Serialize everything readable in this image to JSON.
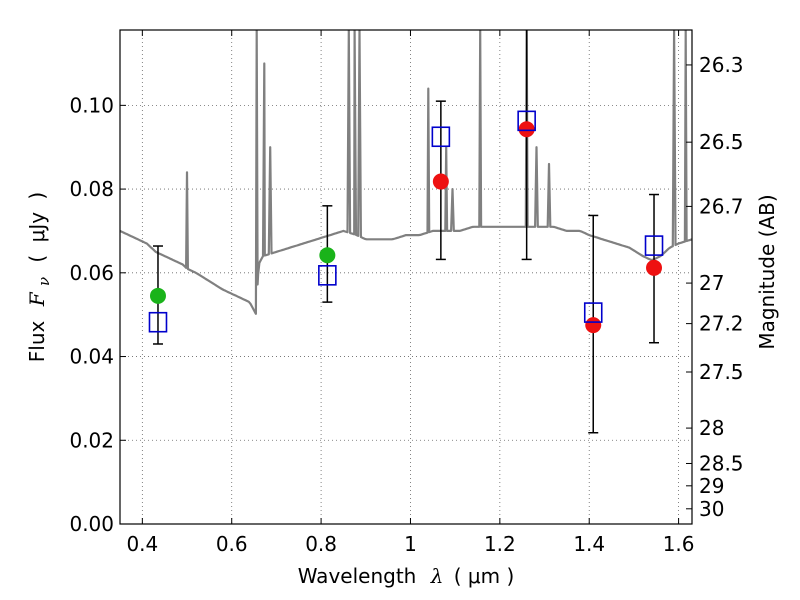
{
  "chart_data": {
    "type": "scatter",
    "xlabel": {
      "text": "Wavelength",
      "symbol": "λ",
      "open": "(",
      "unit": "μm",
      "close": ")"
    },
    "ylabel": {
      "text": "Flux",
      "symbol": "F",
      "subscript": "ν",
      "open": "(",
      "unit": "μJy",
      "close": ")"
    },
    "y2label": "Magnitude (AB)",
    "xlim": [
      0.35,
      1.63
    ],
    "ylim": [
      0.0,
      0.118
    ],
    "grid": true,
    "x_ticks": [
      0.4,
      0.6,
      0.8,
      1.0,
      1.2,
      1.4,
      1.6
    ],
    "x_tick_labels": [
      "0.4",
      "0.6",
      "0.8",
      "1",
      "1.2",
      "1.4",
      "1.6"
    ],
    "y_ticks": [
      0.0,
      0.02,
      0.04,
      0.06,
      0.08,
      0.1
    ],
    "y_tick_labels": [
      "0.00",
      "0.02",
      "0.04",
      "0.06",
      "0.08",
      "0.10"
    ],
    "mag_ticks": [
      26.3,
      26.5,
      26.7,
      27,
      27.2,
      27.5,
      28,
      28.5,
      29,
      30
    ],
    "mag_tick_labels": [
      "26.3",
      "26.5",
      "26.7",
      "27",
      "27.2",
      "27.5",
      "28",
      "28.5",
      "29",
      "30"
    ],
    "colors": {
      "model": "#808080",
      "green": "#1ab31a",
      "red": "#ee1111",
      "square": "#0000cc",
      "errorbar": "#000000",
      "grid": "#666666"
    },
    "series": [
      {
        "type": "line",
        "points": [
          [
            0.35,
            0.07
          ],
          [
            0.37,
            0.069
          ],
          [
            0.39,
            0.068
          ],
          [
            0.41,
            0.067
          ],
          [
            0.43,
            0.065
          ],
          [
            0.45,
            0.064
          ],
          [
            0.47,
            0.063
          ],
          [
            0.49,
            0.062
          ],
          [
            0.5,
            0.061
          ],
          [
            0.52,
            0.06
          ],
          [
            0.55,
            0.058
          ],
          [
            0.58,
            0.056
          ],
          [
            0.6,
            0.055
          ],
          [
            0.62,
            0.054
          ],
          [
            0.64,
            0.053
          ],
          [
            0.65,
            0.051
          ],
          [
            0.655,
            0.05
          ],
          [
            0.66,
            0.062
          ],
          [
            0.67,
            0.064
          ],
          [
            0.7,
            0.065
          ],
          [
            0.73,
            0.066
          ],
          [
            0.76,
            0.067
          ],
          [
            0.79,
            0.068
          ],
          [
            0.82,
            0.069
          ],
          [
            0.85,
            0.07
          ],
          [
            0.88,
            0.069
          ],
          [
            0.9,
            0.068
          ],
          [
            0.93,
            0.068
          ],
          [
            0.96,
            0.068
          ],
          [
            0.99,
            0.069
          ],
          [
            1.02,
            0.069
          ],
          [
            1.05,
            0.07
          ],
          [
            1.08,
            0.07
          ],
          [
            1.11,
            0.07
          ],
          [
            1.14,
            0.071
          ],
          [
            1.17,
            0.071
          ],
          [
            1.2,
            0.071
          ],
          [
            1.23,
            0.071
          ],
          [
            1.26,
            0.071
          ],
          [
            1.29,
            0.071
          ],
          [
            1.32,
            0.071
          ],
          [
            1.35,
            0.07
          ],
          [
            1.38,
            0.07
          ],
          [
            1.4,
            0.069
          ],
          [
            1.43,
            0.068
          ],
          [
            1.46,
            0.067
          ],
          [
            1.49,
            0.066
          ],
          [
            1.52,
            0.064
          ],
          [
            1.54,
            0.063
          ],
          [
            1.56,
            0.064
          ],
          [
            1.58,
            0.066
          ],
          [
            1.6,
            0.067
          ],
          [
            1.63,
            0.068
          ]
        ],
        "emission_lines": [
          {
            "x": 0.5,
            "top": 0.084
          },
          {
            "x": 0.656,
            "top": 0.118
          },
          {
            "x": 0.673,
            "top": 0.11
          },
          {
            "x": 0.686,
            "top": 0.09
          },
          {
            "x": 0.862,
            "top": 0.118
          },
          {
            "x": 0.875,
            "top": 0.118
          },
          {
            "x": 0.886,
            "top": 0.118
          },
          {
            "x": 1.04,
            "top": 0.104
          },
          {
            "x": 1.08,
            "top": 0.09
          },
          {
            "x": 1.094,
            "top": 0.08
          },
          {
            "x": 1.156,
            "top": 0.118
          },
          {
            "x": 1.26,
            "top": 0.118
          },
          {
            "x": 1.282,
            "top": 0.09
          },
          {
            "x": 1.31,
            "top": 0.086
          },
          {
            "x": 1.59,
            "top": 0.118
          },
          {
            "x": 1.616,
            "top": 0.118
          }
        ]
      },
      {
        "type": "points",
        "marker": "circle",
        "color": "green",
        "values": [
          {
            "x": 0.435,
            "y": 0.0545
          },
          {
            "x": 0.814,
            "y": 0.0642
          }
        ]
      },
      {
        "type": "points",
        "marker": "circle",
        "color": "red",
        "values": [
          {
            "x": 1.068,
            "y": 0.0818
          },
          {
            "x": 1.26,
            "y": 0.0943
          },
          {
            "x": 1.409,
            "y": 0.0475
          },
          {
            "x": 1.545,
            "y": 0.0612
          }
        ]
      },
      {
        "type": "points",
        "marker": "square",
        "color": "square",
        "values": [
          {
            "x": 0.435,
            "y": 0.0482,
            "lo": 0.043,
            "hi": 0.0664
          },
          {
            "x": 0.814,
            "y": 0.0594,
            "lo": 0.053,
            "hi": 0.076
          },
          {
            "x": 1.068,
            "y": 0.0925,
            "lo": 0.0632,
            "hi": 0.101
          },
          {
            "x": 1.26,
            "y": 0.0963,
            "lo": 0.0632,
            "hi": 0.118
          },
          {
            "x": 1.409,
            "y": 0.0505,
            "lo": 0.0218,
            "hi": 0.0737
          },
          {
            "x": 1.545,
            "y": 0.0665,
            "lo": 0.0433,
            "hi": 0.0787
          }
        ]
      }
    ]
  }
}
